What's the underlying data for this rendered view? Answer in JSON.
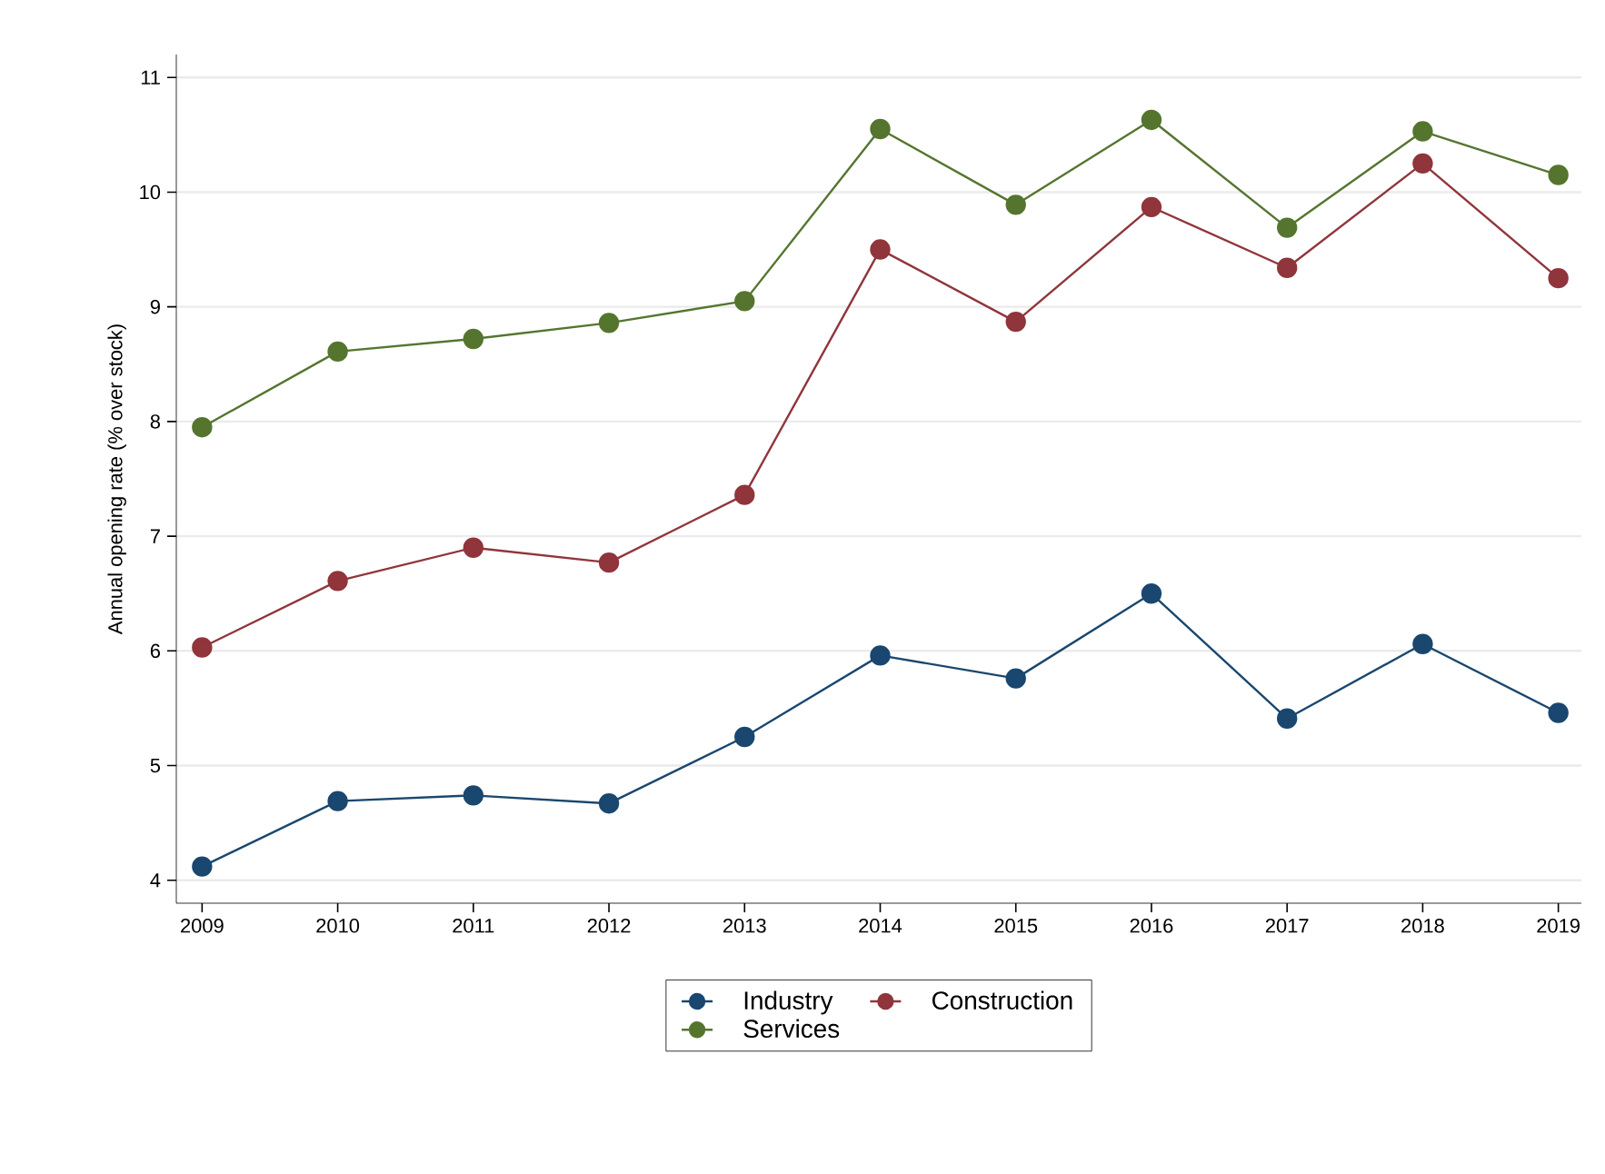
{
  "chart_data": {
    "type": "line",
    "ylabel": "Annual opening rate (% over stock)",
    "categories": [
      "2009",
      "2010",
      "2011",
      "2012",
      "2013",
      "2014",
      "2015",
      "2016",
      "2017",
      "2018",
      "2019"
    ],
    "series": [
      {
        "name": "Industry",
        "color": "#1a476f",
        "values": [
          4.12,
          4.69,
          4.74,
          4.67,
          5.25,
          5.96,
          5.76,
          6.5,
          5.41,
          6.06,
          5.46
        ]
      },
      {
        "name": "Construction",
        "color": "#90353b",
        "values": [
          6.03,
          6.61,
          6.9,
          6.77,
          7.36,
          9.5,
          8.87,
          9.87,
          9.34,
          10.25,
          9.25
        ]
      },
      {
        "name": "Services",
        "color": "#55752f",
        "values": [
          7.95,
          8.61,
          8.72,
          8.86,
          9.05,
          10.55,
          9.89,
          10.63,
          9.69,
          10.53,
          10.15
        ]
      }
    ],
    "ylim": [
      3.8,
      11.2
    ],
    "yticks": [
      4,
      5,
      6,
      7,
      8,
      9,
      10,
      11
    ],
    "grid": "y",
    "legend": "bottom",
    "marker": "circle",
    "line_style": "solid"
  }
}
